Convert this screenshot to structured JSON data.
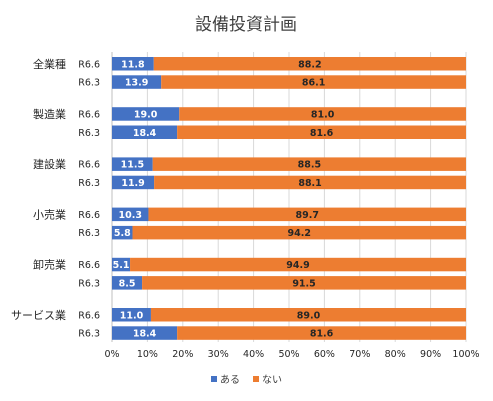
{
  "colors": {
    "aru": "#4472C4",
    "nai": "#ED7D31",
    "grid": "#D9D9D9",
    "axis": "#BFBFBF"
  },
  "chart_data": {
    "type": "bar",
    "orientation": "horizontal",
    "stacked": "percent",
    "title": "設備投資計画",
    "xlim": [
      0,
      100
    ],
    "x_ticks": [
      "0%",
      "10%",
      "20%",
      "30%",
      "40%",
      "50%",
      "60%",
      "70%",
      "80%",
      "90%",
      "100%"
    ],
    "grid": true,
    "legend": "bottom",
    "series_names": [
      "ある",
      "ない"
    ],
    "groups": [
      {
        "category": "全業種",
        "rows": [
          {
            "label": "R6.6",
            "values": [
              11.8,
              88.2
            ]
          },
          {
            "label": "R6.3",
            "values": [
              13.9,
              86.1
            ]
          }
        ]
      },
      {
        "category": "製造業",
        "rows": [
          {
            "label": "R6.6",
            "values": [
              19.0,
              81.0
            ]
          },
          {
            "label": "R6.3",
            "values": [
              18.4,
              81.6
            ]
          }
        ]
      },
      {
        "category": "建設業",
        "rows": [
          {
            "label": "R6.6",
            "values": [
              11.5,
              88.5
            ]
          },
          {
            "label": "R6.3",
            "values": [
              11.9,
              88.1
            ]
          }
        ]
      },
      {
        "category": "小売業",
        "rows": [
          {
            "label": "R6.6",
            "values": [
              10.3,
              89.7
            ]
          },
          {
            "label": "R6.3",
            "values": [
              5.8,
              94.2
            ]
          }
        ]
      },
      {
        "category": "卸売業",
        "rows": [
          {
            "label": "R6.6",
            "values": [
              5.1,
              94.9
            ]
          },
          {
            "label": "R6.3",
            "values": [
              8.5,
              91.5
            ]
          }
        ]
      },
      {
        "category": "サービス業",
        "rows": [
          {
            "label": "R6.6",
            "values": [
              11.0,
              89.0
            ]
          },
          {
            "label": "R6.3",
            "values": [
              18.4,
              81.6
            ]
          }
        ]
      }
    ]
  }
}
